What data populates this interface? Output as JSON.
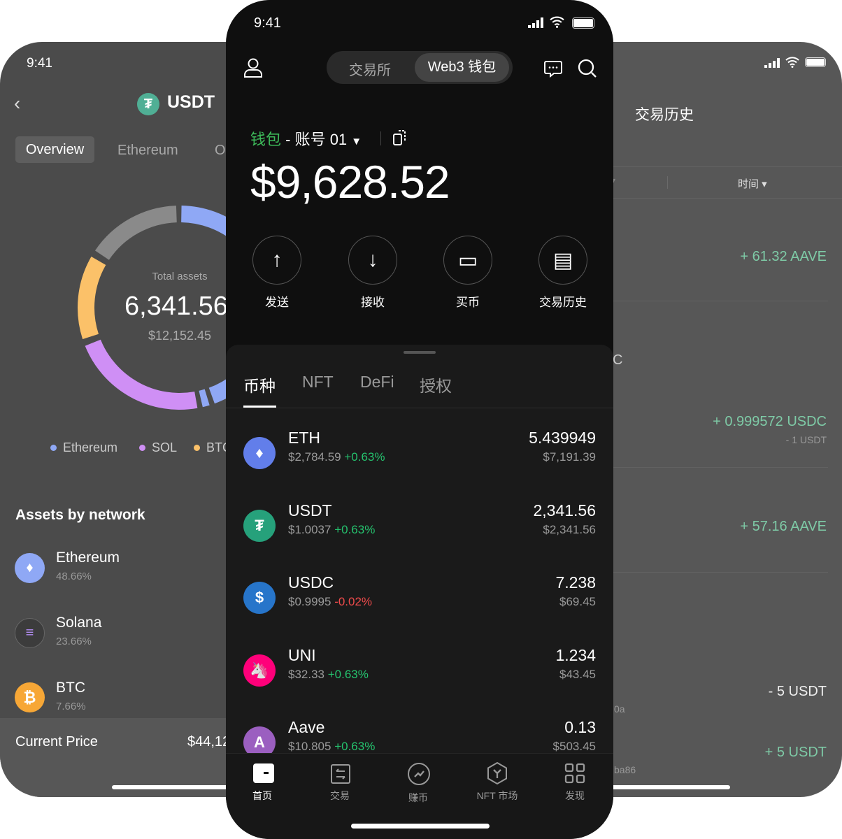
{
  "left_phone": {
    "time": "9:41",
    "title": "USDT",
    "tabs": [
      "Overview",
      "Ethereum",
      "O"
    ],
    "chart_data": {
      "type": "pie",
      "title": "Total assets",
      "center_value": "6,341.56",
      "center_sub": "$12,152.45",
      "legend": [
        "Ethereum",
        "SOL",
        "BTC"
      ],
      "colors": {
        "Ethereum": "#8fa8f5",
        "SOL": "#cf8ff5",
        "BTC": "#fbc169",
        "Other": "#8a8a8a"
      }
    },
    "section_title": "Assets by network",
    "networks": [
      {
        "name": "Ethereum",
        "pct": "48.66%",
        "icon": "ethereum-icon"
      },
      {
        "name": "Solana",
        "pct": "23.66%",
        "icon": "solana-icon"
      },
      {
        "name": "BTC",
        "pct": "7.66%",
        "icon": "bitcoin-icon"
      }
    ],
    "price_label": "Current Price",
    "price_value": "$44,12"
  },
  "right_phone": {
    "title": "交易历史",
    "filter_time": "时间",
    "rows": [
      {
        "amount": "+ 61.32 AAVE",
        "type": "in"
      },
      {
        "amount": "+ 0.999572 USDC",
        "sub": "- 1 USDT",
        "type": "in"
      },
      {
        "amount": "+ 57.16 AAVE",
        "type": "in"
      },
      {
        "amount": "- 5 USDT",
        "type": "out",
        "frag": "0a"
      },
      {
        "amount": "+ 5 USDT",
        "type": "in",
        "frag": "ba86"
      }
    ],
    "frag_c": "C"
  },
  "main": {
    "time": "9:41",
    "segments": [
      "交易所",
      "Web3 钱包"
    ],
    "active_segment": 1,
    "wallet_label": "钱包",
    "account": "- 账号 01",
    "balance": "$9,628.52",
    "actions": [
      {
        "label": "发送",
        "icon": "arrow-up-icon"
      },
      {
        "label": "接收",
        "icon": "arrow-down-icon"
      },
      {
        "label": "买币",
        "icon": "card-icon"
      },
      {
        "label": "交易历史",
        "icon": "history-icon"
      }
    ],
    "tabs": [
      "币种",
      "NFT",
      "DeFi",
      "授权"
    ],
    "active_tab": 0,
    "tokens": [
      {
        "name": "ETH",
        "price": "$2,784.59",
        "change": "+0.63%",
        "amount": "5.439949",
        "value": "$7,191.39",
        "color": "#627eea"
      },
      {
        "name": "USDT",
        "price": "$1.0037",
        "change": "+0.63%",
        "amount": "2,341.56",
        "value": "$2,341.56",
        "color": "#26a17b"
      },
      {
        "name": "USDC",
        "price": "$0.9995",
        "change": "-0.02%",
        "amount": "7.238",
        "value": "$69.45",
        "color": "#2775ca"
      },
      {
        "name": "UNI",
        "price": "$32.33",
        "change": "+0.63%",
        "amount": "1.234",
        "value": "$43.45",
        "color": "#ff007a"
      },
      {
        "name": "Aave",
        "price": "$10.805",
        "change": "+0.63%",
        "amount": "0.13",
        "value": "$503.45",
        "color": "#9b5fc0"
      }
    ],
    "nav": [
      "首页",
      "交易",
      "赚币",
      "NFT 市场",
      "发现"
    ],
    "active_nav": 0
  },
  "colors": {
    "positive": "#25c26e",
    "negative": "#ef4b4b",
    "wallet_green": "#3dbb5a",
    "history_green": "#7ecaa6"
  }
}
